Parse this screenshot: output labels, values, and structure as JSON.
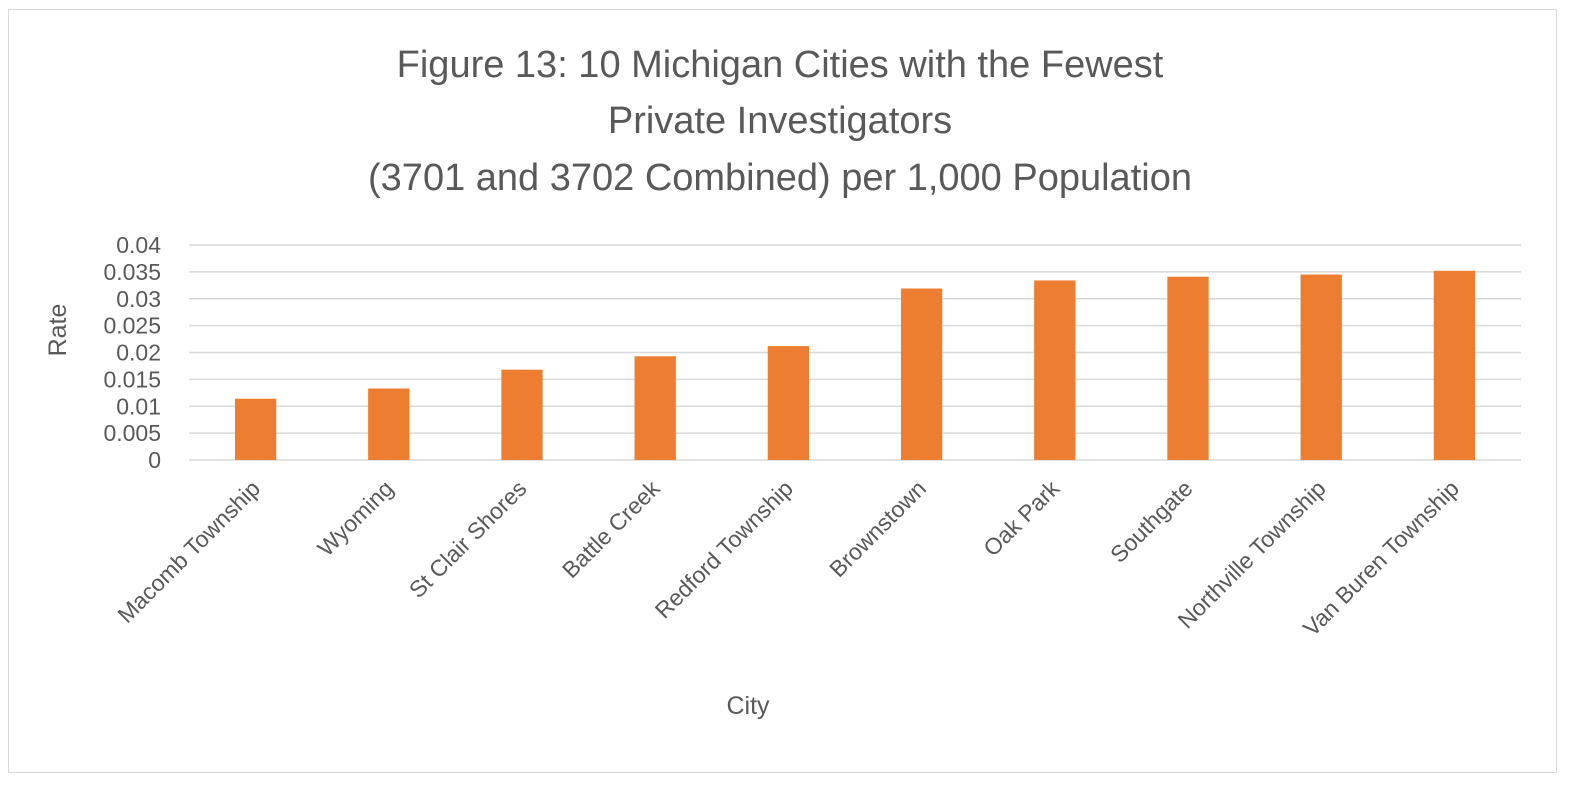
{
  "chart_data": {
    "type": "bar",
    "title_lines": [
      "Figure 13: 10 Michigan Cities with the Fewest",
      "Private Investigators",
      "(3701 and 3702 Combined) per 1,000 Population"
    ],
    "xlabel": "City",
    "ylabel": "Rate",
    "categories": [
      "Macomb Township",
      "Wyoming",
      "St Clair Shores",
      "Battle Creek",
      "Redford Township",
      "Brownstown",
      "Oak Park",
      "Southgate",
      "Northville Township",
      "Van Buren Township"
    ],
    "values": [
      0.0114,
      0.0133,
      0.0168,
      0.0193,
      0.0212,
      0.0319,
      0.0334,
      0.0341,
      0.0345,
      0.0352
    ],
    "ylim": [
      0,
      0.04
    ],
    "y_ticks": [
      "0",
      "0.005",
      "0.01",
      "0.015",
      "0.02",
      "0.025",
      "0.03",
      "0.035",
      "0.04"
    ],
    "grid": true,
    "legend": "none",
    "colors": {
      "bar": "#ed7d31",
      "grid": "#d9d9d9",
      "text": "#595959"
    }
  }
}
